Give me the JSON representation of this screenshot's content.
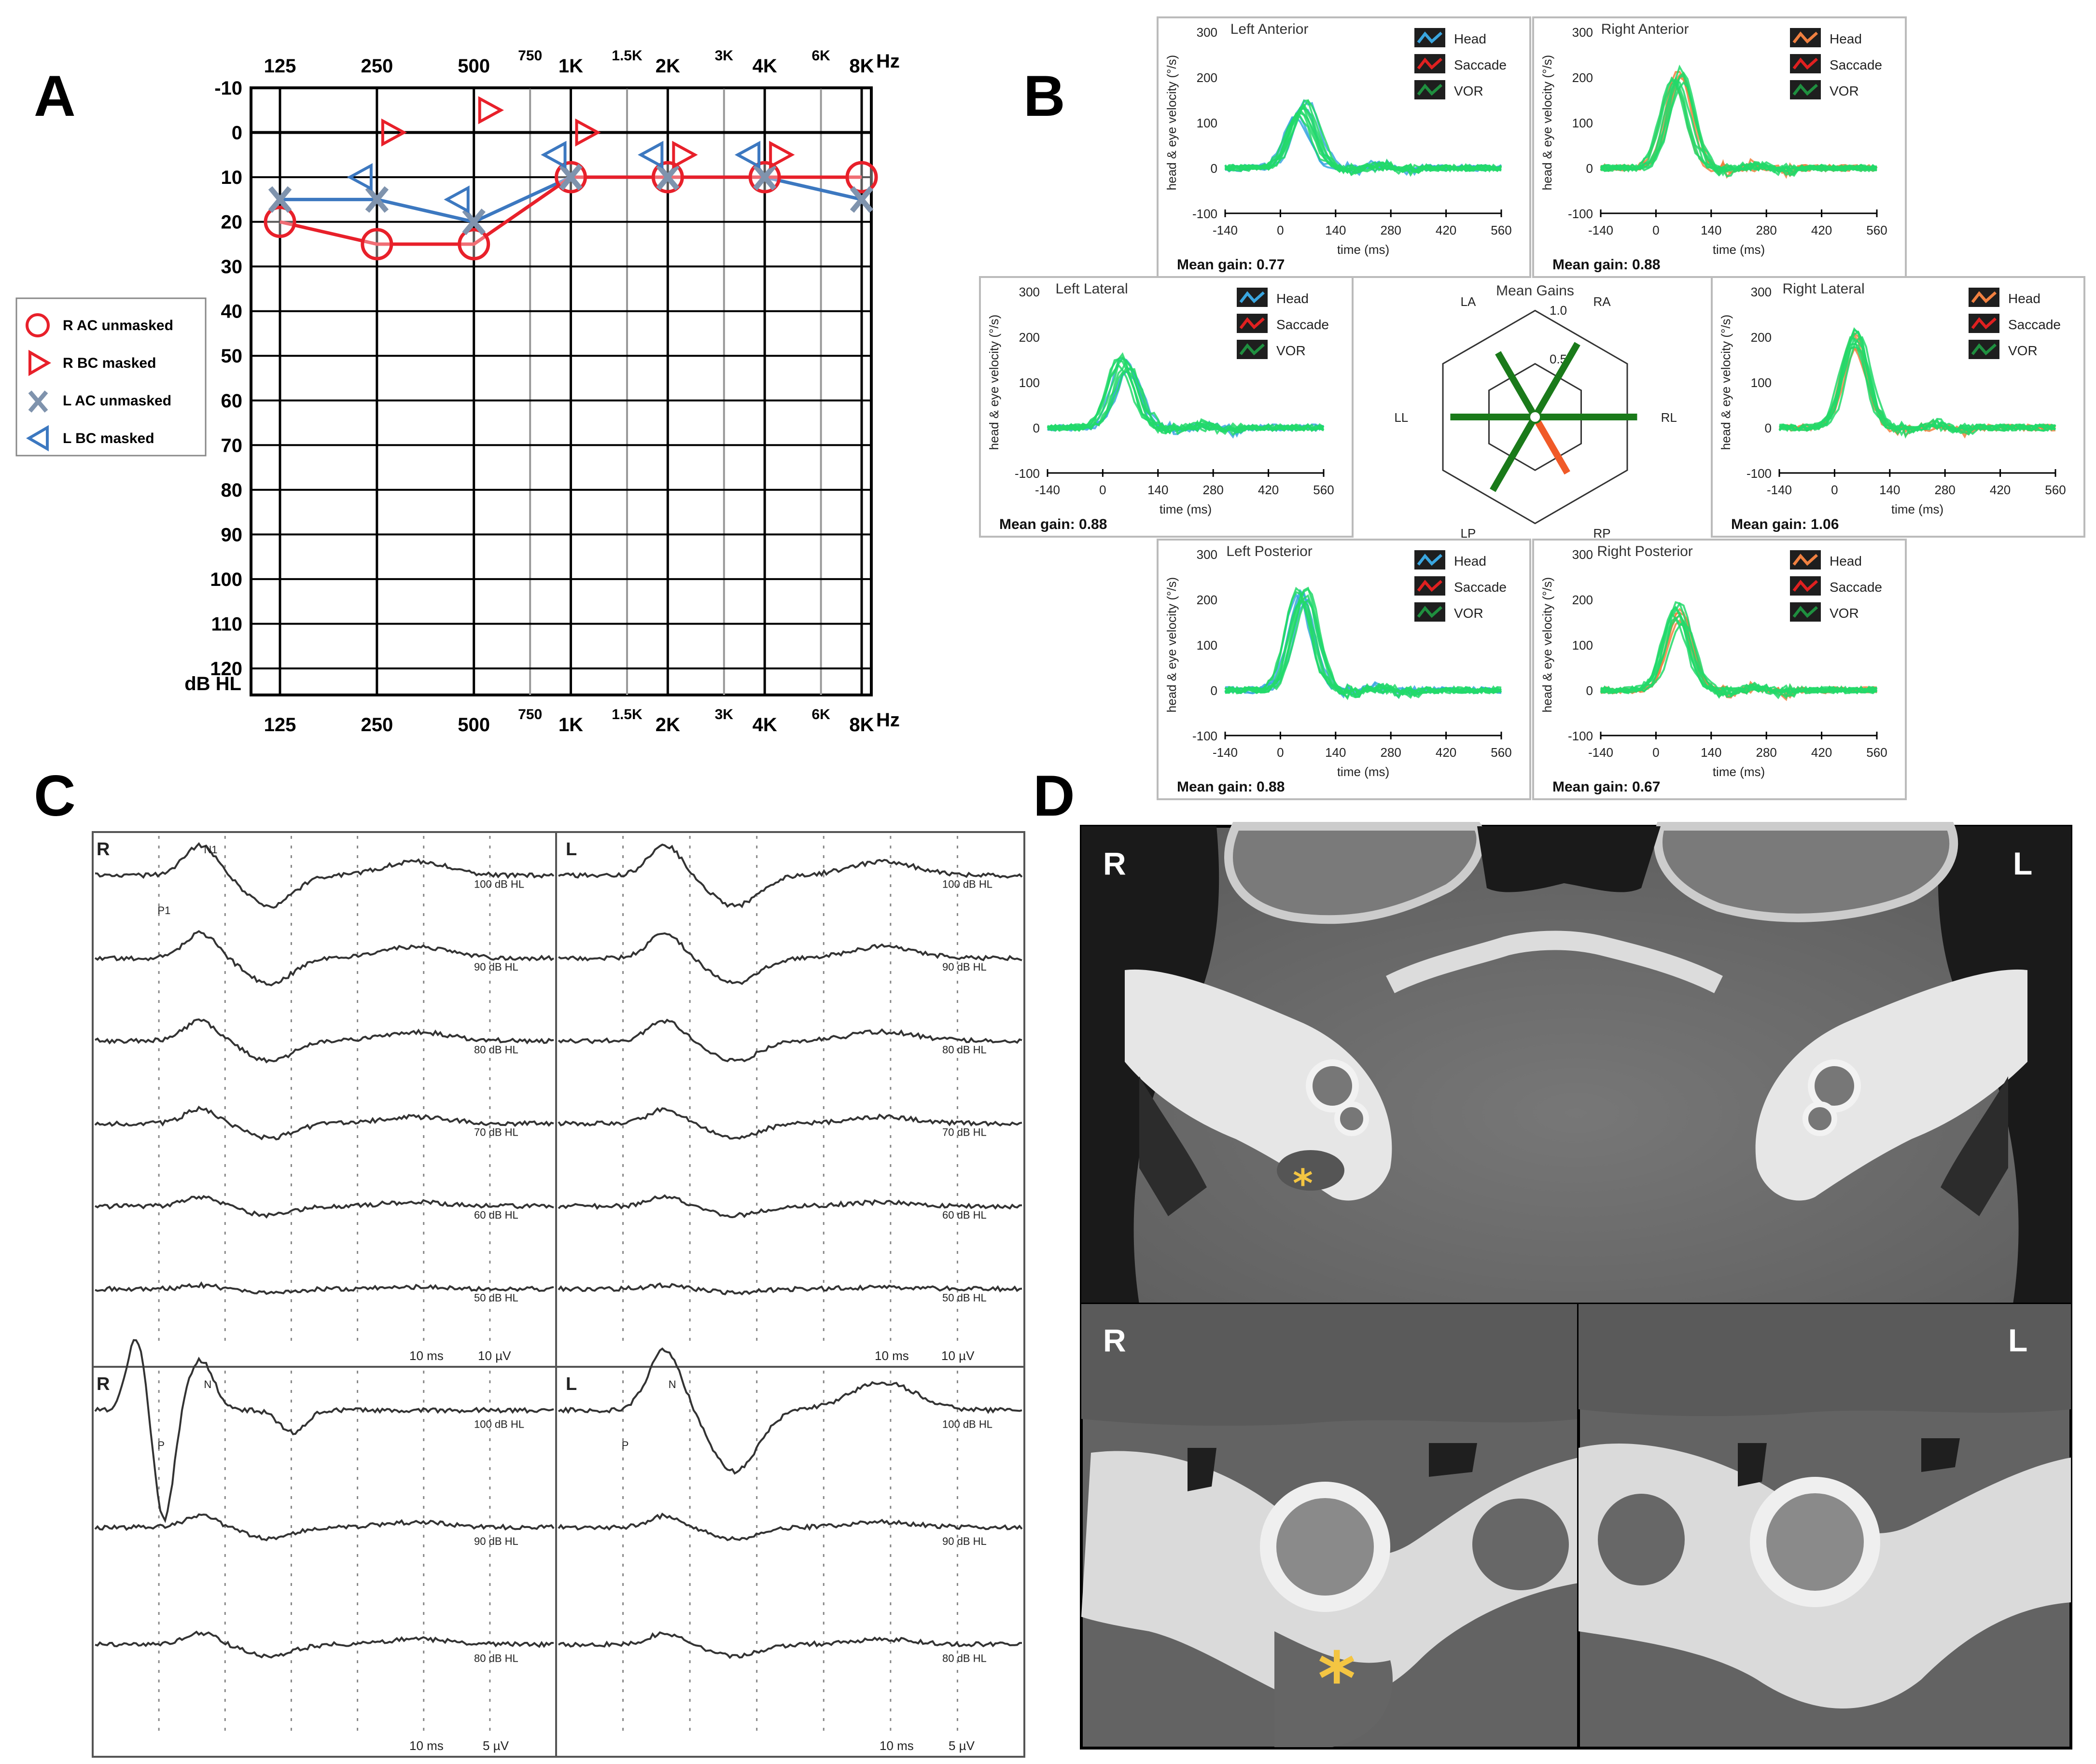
{
  "panel_letters": [
    "A",
    "B",
    "C",
    "D"
  ],
  "audiogram": {
    "freq_top": [
      "125",
      "250",
      "500",
      "750",
      "1K",
      "1.5K",
      "2K",
      "3K",
      "4K",
      "6K",
      "8K"
    ],
    "freq_bottom": [
      "125",
      "250",
      "500",
      "750",
      "1K",
      "1.5K",
      "2K",
      "3K",
      "4K",
      "6K",
      "8K"
    ],
    "hz_label": "Hz",
    "db_ticks": [
      "-10",
      "0",
      "10",
      "20",
      "30",
      "40",
      "50",
      "60",
      "70",
      "80",
      "90",
      "100",
      "110",
      "120"
    ],
    "db_label": "dB HL",
    "legend": [
      {
        "label": "R AC unmasked",
        "symbol": "circle-red"
      },
      {
        "label": "R BC masked",
        "symbol": "right-triangle-red"
      },
      {
        "label": "L AC unmasked",
        "symbol": "x-gray"
      },
      {
        "label": "L BC masked",
        "symbol": "left-triangle-blue"
      }
    ],
    "colors": {
      "right": "#e8202a",
      "left": "#3c78c0",
      "left_x": "#7f93ad"
    }
  },
  "chart_data": [
    {
      "type": "scatter",
      "chart": "audiogram",
      "x_categories": [
        "125",
        "250",
        "500",
        "750",
        "1K",
        "1.5K",
        "2K",
        "3K",
        "4K",
        "6K",
        "8K"
      ],
      "y_unit": "dB HL",
      "ylim": [
        -10,
        120
      ],
      "y_inverted": true,
      "series": [
        {
          "name": "R AC unmasked",
          "connected": true,
          "points": [
            [
              "125",
              20
            ],
            [
              "250",
              25
            ],
            [
              "500",
              25
            ],
            [
              "1K",
              10
            ],
            [
              "2K",
              10
            ],
            [
              "4K",
              10
            ],
            [
              "8K",
              10
            ]
          ]
        },
        {
          "name": "R BC masked",
          "connected": false,
          "points": [
            [
              "250",
              0
            ],
            [
              "500",
              -5
            ],
            [
              "1K",
              0
            ],
            [
              "2K",
              5
            ],
            [
              "4K",
              5
            ]
          ]
        },
        {
          "name": "L AC unmasked",
          "connected": true,
          "points": [
            [
              "125",
              15
            ],
            [
              "250",
              15
            ],
            [
              "500",
              20
            ],
            [
              "1K",
              10
            ],
            [
              "2K",
              10
            ],
            [
              "4K",
              10
            ],
            [
              "8K",
              15
            ]
          ]
        },
        {
          "name": "L BC masked",
          "connected": false,
          "points": [
            [
              "250",
              10
            ],
            [
              "500",
              15
            ],
            [
              "1K",
              5
            ],
            [
              "2K",
              5
            ],
            [
              "4K",
              5
            ]
          ]
        }
      ]
    },
    {
      "type": "line",
      "chart": "video-head-impulse-test",
      "x_ticks": [
        "-140",
        "0",
        "140",
        "280",
        "420",
        "560"
      ],
      "y_ticks": [
        "300",
        "200",
        "100",
        "0",
        "-100"
      ],
      "xlabel": "time (ms)",
      "ylabel": "head & eye velocity (°/s)",
      "legend": [
        "Head",
        "Saccade",
        "VOR"
      ],
      "plots": [
        {
          "title": "Left Anterior",
          "gain": "Mean gain: 0.77",
          "peak": 130,
          "head_color": "#3aa6e0"
        },
        {
          "title": "Right Anterior",
          "gain": "Mean gain: 0.88",
          "peak": 205,
          "head_color": "#f08040"
        },
        {
          "title": "Left Lateral",
          "gain": "Mean gain: 0.88",
          "peak": 140,
          "head_color": "#3aa6e0"
        },
        {
          "title": "Right Lateral",
          "gain": "Mean gain: 1.06",
          "peak": 195,
          "head_color": "#f08040"
        },
        {
          "title": "Left Posterior",
          "gain": "Mean gain: 0.88",
          "peak": 210,
          "head_color": "#3aa6e0"
        },
        {
          "title": "Right Posterior",
          "gain": "Mean gain: 0.67",
          "peak": 170,
          "head_color": "#f08040"
        }
      ]
    },
    {
      "type": "radar",
      "chart": "mean-gains",
      "title": "Mean Gains",
      "axes": [
        "LA",
        "RA",
        "RL",
        "RP",
        "LP",
        "LL"
      ],
      "scale_ticks": [
        "0.5",
        "1.0"
      ],
      "values": {
        "LA": 0.77,
        "RA": 0.88,
        "RL": 1.06,
        "RP": 0.67,
        "LP": 0.88,
        "LL": 0.88
      },
      "colors": {
        "normal": "#1a7a1a",
        "low": "#f05a28"
      }
    }
  ],
  "abr": {
    "top_left": {
      "side": "R",
      "levels": [
        "100 dB HL",
        "90 dB HL",
        "80 dB HL",
        "70 dB HL",
        "60 dB HL",
        "50 dB HL"
      ],
      "scale": [
        "10 ms",
        "10 µV"
      ],
      "peaks": [
        "N1",
        "P1"
      ]
    },
    "top_right": {
      "side": "L",
      "levels": [
        "100 dB HL",
        "90 dB HL",
        "80 dB HL",
        "70 dB HL",
        "60 dB HL",
        "50 dB HL"
      ],
      "scale": [
        "10 ms",
        "10 µV"
      ]
    },
    "bottom_left": {
      "side": "R",
      "levels": [
        "100 dB HL",
        "90 dB HL",
        "80 dB HL"
      ],
      "scale": [
        "10 ms",
        "5 µV"
      ],
      "peaks": [
        "N",
        "P"
      ]
    },
    "bottom_right": {
      "side": "L",
      "levels": [
        "100 dB HL",
        "90 dB HL",
        "80 dB HL"
      ],
      "scale": [
        "10 ms",
        "5 µV"
      ],
      "peaks": [
        "N",
        "P"
      ]
    }
  },
  "ct": {
    "top": {
      "left_label": "R",
      "right_label": "L",
      "marker": "*"
    },
    "bottom_left": {
      "label": "R",
      "marker": "*"
    },
    "bottom_right": {
      "label": "L"
    },
    "marker_color": "#f4c542"
  }
}
